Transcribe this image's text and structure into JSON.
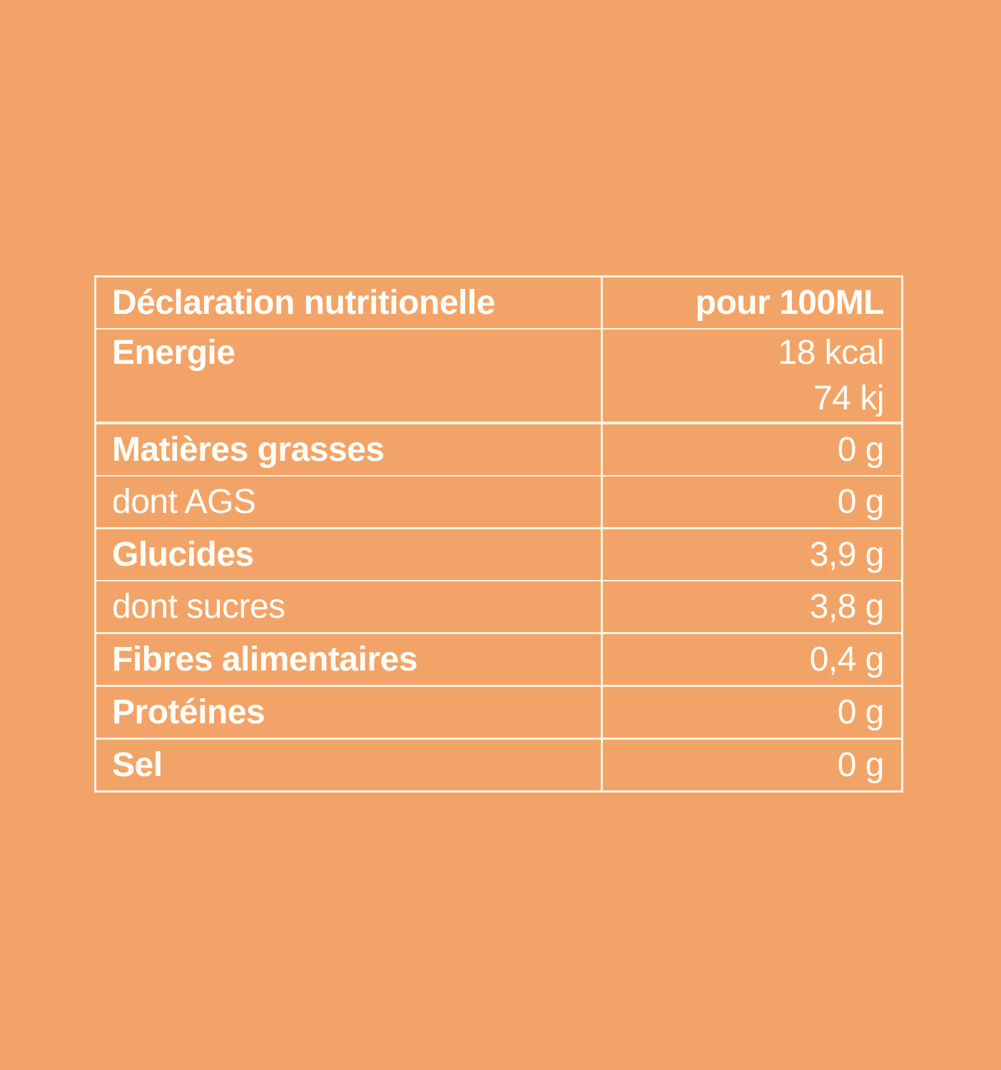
{
  "page": {
    "background_color": "#F2A468",
    "border_color": "#FAF3E1",
    "text_color": "#FFFDF8"
  },
  "table": {
    "header": {
      "label": "Déclaration nutritionelle",
      "value": "pour 100ML"
    },
    "rows": [
      {
        "label": "Energie",
        "values": [
          "18 kcal",
          "74 kj"
        ],
        "bold": true,
        "divider": "thin",
        "tall": true
      },
      {
        "label": "Matières grasses",
        "values": [
          "0 g"
        ],
        "bold": true,
        "divider": "thicker",
        "tall": false
      },
      {
        "label": "dont AGS",
        "values": [
          "0 g"
        ],
        "bold": false,
        "divider": "thin",
        "tall": false
      },
      {
        "label": "Glucides",
        "values": [
          "3,9 g"
        ],
        "bold": true,
        "divider": "thick",
        "tall": false
      },
      {
        "label": "dont sucres",
        "values": [
          "3,8 g"
        ],
        "bold": false,
        "divider": "thin",
        "tall": false
      },
      {
        "label": "Fibres alimentaires",
        "values": [
          "0,4 g"
        ],
        "bold": true,
        "divider": "thick",
        "tall": false
      },
      {
        "label": "Protéines",
        "values": [
          "0 g"
        ],
        "bold": true,
        "divider": "thick",
        "tall": false
      },
      {
        "label": "Sel",
        "values": [
          "0 g"
        ],
        "bold": true,
        "divider": "thick",
        "tall": false
      }
    ]
  }
}
